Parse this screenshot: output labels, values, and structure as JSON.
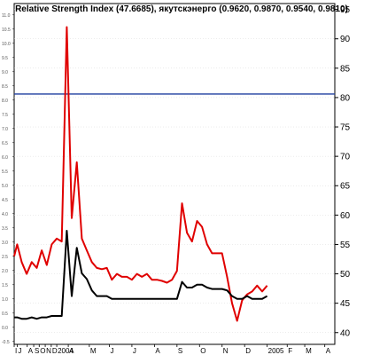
{
  "chart_data": {
    "type": "line",
    "title": "Relative Strength Index (47.6685), якутскэнерго (0.9620, 0.9870, 0.9540, 0.9810)",
    "ylim": [
      38,
      96
    ],
    "right_ticks": [
      95,
      90,
      85,
      80,
      75,
      70,
      65,
      60,
      55,
      50,
      45,
      40
    ],
    "reference_line": {
      "value": 80.6,
      "color": "#1f3f9f"
    },
    "left_axis": {
      "ylim": [
        -0.6,
        11.4
      ],
      "ticks": [
        "11.0",
        "10.5",
        "10.0",
        "9.5",
        "9.0",
        "8.5",
        "8.0",
        "7.5",
        "7.0",
        "6.5",
        "6.0",
        "5.5",
        "5.0",
        "4.5",
        "4.0",
        "3.5",
        "3.0",
        "2.5",
        "2.0",
        "1.5",
        "1.0",
        "0.5",
        "0.0",
        "-0.5"
      ]
    },
    "x_labels": [
      {
        "label": "I",
        "pos": 0.0
      },
      {
        "label": "J",
        "pos": 0.6
      },
      {
        "label": "A",
        "pos": 2.6
      },
      {
        "label": "S",
        "pos": 3.9
      },
      {
        "label": "O",
        "pos": 5.0
      },
      {
        "label": "N",
        "pos": 6.2
      },
      {
        "label": "D",
        "pos": 7.4
      },
      {
        "label": "2004",
        "pos": 8.5
      },
      {
        "label": "A",
        "pos": 10.8
      },
      {
        "label": "M",
        "pos": 15.0
      },
      {
        "label": "J",
        "pos": 19.0
      },
      {
        "label": "J",
        "pos": 23.5
      },
      {
        "label": "A",
        "pos": 28.0
      },
      {
        "label": "S",
        "pos": 32.5
      },
      {
        "label": "O",
        "pos": 37.0
      },
      {
        "label": "N",
        "pos": 41.5
      },
      {
        "label": "D",
        "pos": 46.0
      },
      {
        "label": "2005",
        "pos": 50.5
      },
      {
        "label": "F",
        "pos": 54.5
      },
      {
        "label": "M",
        "pos": 58.0
      },
      {
        "label": "A",
        "pos": 62.0
      }
    ],
    "x_range": [
      0,
      64
    ],
    "series": [
      {
        "color": "#e00000",
        "axis": "right",
        "x": [
          0,
          0.6,
          1.5,
          2.5,
          3.5,
          4.5,
          5.5,
          6.5,
          7.5,
          8.5,
          9.5,
          10.5,
          11.5,
          12.5,
          13.5,
          14.5,
          15.5,
          16.5,
          17.5,
          18.5,
          19.5,
          20.5,
          21.5,
          22.5,
          23.5,
          24.5,
          25.5,
          26.5,
          27.5,
          28.5,
          29.5,
          30.5,
          31.5,
          32.5,
          33.5,
          34.5,
          35.5,
          36.5,
          37.5,
          38.5,
          39.5,
          40.5,
          41.5,
          42.5,
          43.5,
          44.5,
          45.5,
          46.5,
          47.5,
          48.5,
          49.5,
          50.5
        ],
        "values": [
          53,
          55,
          52,
          50,
          52,
          51,
          54,
          51.5,
          55,
          56,
          55.5,
          92,
          59.5,
          69,
          56,
          54,
          52,
          51,
          50.8,
          51,
          49,
          50,
          49.5,
          49.5,
          49,
          50,
          49.5,
          50,
          49,
          49,
          48.8,
          48.5,
          49,
          50.5,
          62,
          57,
          55.5,
          59,
          58,
          55,
          53.5,
          53.5,
          53.5,
          49.5,
          45,
          42,
          45.5,
          46.5,
          47,
          48,
          47,
          48
        ]
      },
      {
        "color": "#000000",
        "axis": "left",
        "x": [
          0,
          0.6,
          1.5,
          2.5,
          3.5,
          4.5,
          5.5,
          6.5,
          7.5,
          8.5,
          9.5,
          10.5,
          11.5,
          12.5,
          13.5,
          14.5,
          15.5,
          16.5,
          17.5,
          18.5,
          19.5,
          20.5,
          21.5,
          22.5,
          23.5,
          24.5,
          25.5,
          26.5,
          27.5,
          28.5,
          29.5,
          30.5,
          31.5,
          32.5,
          33.5,
          34.5,
          35.5,
          36.5,
          37.5,
          38.5,
          39.5,
          40.5,
          41.5,
          42.5,
          43.5,
          44.5,
          45.5,
          46.5,
          47.5,
          48.5,
          49.5,
          50.5
        ],
        "values": [
          0.35,
          0.35,
          0.3,
          0.3,
          0.35,
          0.3,
          0.35,
          0.35,
          0.4,
          0.4,
          0.4,
          3.4,
          1.1,
          2.8,
          1.9,
          1.7,
          1.3,
          1.1,
          1.1,
          1.1,
          1.0,
          1.0,
          1.0,
          1.0,
          1.0,
          1.0,
          1.0,
          1.0,
          1.0,
          1.0,
          1.0,
          1.0,
          1.0,
          1.0,
          1.6,
          1.4,
          1.4,
          1.5,
          1.5,
          1.4,
          1.35,
          1.35,
          1.35,
          1.3,
          1.1,
          1.0,
          1.0,
          1.1,
          1.0,
          1.0,
          1.0,
          1.1
        ]
      }
    ]
  }
}
